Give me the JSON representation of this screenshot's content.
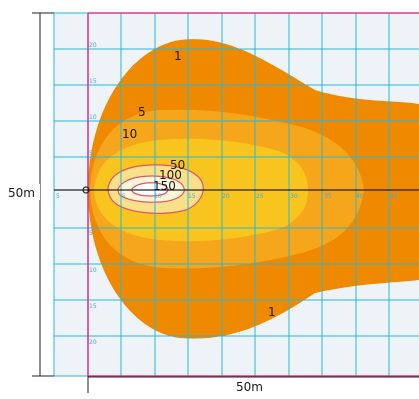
{
  "dimension_labels": {
    "height": "50m",
    "width": "50m"
  },
  "grid_ticks": {
    "left_column": [
      "20",
      "15",
      "10",
      "5",
      "5",
      "10",
      "15",
      "20"
    ],
    "axis_row": [
      "5",
      "5",
      "10",
      "15",
      "20",
      "25",
      "30",
      "35",
      "40",
      "45"
    ]
  },
  "isolux_labels": {
    "outer_top": "1",
    "outer_bottom": "1",
    "level_5": "5",
    "level_10": "10",
    "level_50": "50",
    "level_100": "100",
    "level_150": "150"
  },
  "colors": {
    "background": "#eef3f8",
    "grid_line": "#29b6d8",
    "frame": "#d63b8c",
    "zone_1": "#ef8a00",
    "zone_5": "#f6a61a",
    "zone_10": "#f7c51e",
    "zone_50": "#fbe08a",
    "zone_100": "#fff6d8",
    "contour_line": "#e0556a"
  }
}
